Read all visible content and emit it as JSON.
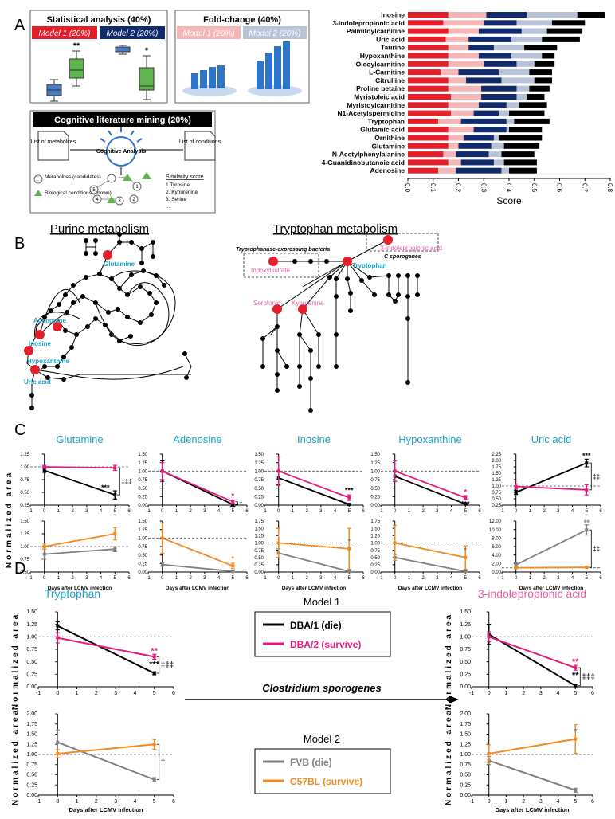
{
  "panel_labels": {
    "a": "A",
    "b": "B",
    "c": "C",
    "d": "D"
  },
  "panel_a": {
    "stat_title": "Statistical analysis (40%)",
    "fold_title": "Fold-change (40%)",
    "model1": "Model 1 (20%)",
    "model2": "Model 2 (20%)",
    "stat_stars": [
      "**",
      "*"
    ],
    "mining_title": "Cognitive literature mining (20%)",
    "doc1": "List of metabolites",
    "doc2": "List of conditions",
    "center": "Cognitive Analysis",
    "legend1": "Metabolites (candidates)",
    "legend2": "Biological conditions (known)",
    "sim_title": "Similarity score",
    "sim_items": [
      "1.Tyrosine",
      "2. Kynurenine",
      "3. Serine",
      "..."
    ],
    "node_numbers": [
      "1",
      "2",
      "3",
      "4",
      "5"
    ]
  },
  "panel_b": {
    "purine_title": "Purine metabolism",
    "tryp_title": "Tryptophan metabolism",
    "purine_nodes": [
      "Glutamine",
      "Adenosine",
      "Inosine",
      "Hypoxanthine",
      "Uric acid"
    ],
    "tryp_nodes": {
      "tryptophan": "Tryptophan",
      "indoxyl": "Indoxylsulfate",
      "serotonin": "Serotonin",
      "kynurenine": "Kynurenine",
      "ipa": "3-indolepropionic acid"
    },
    "bacteria_label": "Tryptophanase-expressing bacteria",
    "csporo_label": "C sporogenes"
  },
  "panel_c": {
    "titles": [
      "Glutamine",
      "Adenosine",
      "Inosine",
      "Hypoxanthine",
      "Uric acid"
    ],
    "ylabel": "Normalized area",
    "xlabel": "Days after LCMV infection"
  },
  "panel_d": {
    "tryp_title": "Tryptophan",
    "ipa_title": "3-indolepropionic acid",
    "model1_title": "Model 1",
    "model2_title": "Model 2",
    "legend_m1": [
      "DBA/1 (die)",
      "DBA/2 (survive)"
    ],
    "legend_m2": [
      "FVB (die)",
      "C57BL (survive)"
    ],
    "arrow_label": "Clostridium sporogenes",
    "ylabel": "Normalized area",
    "xlabel": "Days after LCMV infection"
  },
  "colors": {
    "red": "#e41f2a",
    "pink": "#f4b6b7",
    "navy": "#102a6b",
    "lightblue": "#b8c3d8",
    "black": "#000000",
    "magenta": "#e6197f",
    "gray": "#808080",
    "orange": "#f48a1e",
    "cyan": "#1aa3c8",
    "labelpink": "#e85fa8",
    "green": "#5fb64e",
    "blue": "#4a7bc4"
  },
  "chart_data": [
    {
      "id": "score",
      "type": "bar",
      "orientation": "horizontal",
      "stacked": true,
      "xlabel": "Score",
      "xlim": [
        0,
        0.8
      ],
      "xticks": [
        "0.0",
        "0.1",
        "0.2",
        "0.3",
        "0.4",
        "0.5",
        "0.6",
        "0.7",
        "0.8"
      ],
      "series_names": [
        "Model 1 statistical",
        "Model 1 fold-change",
        "Model 2 statistical",
        "Model 2 fold-change",
        "Literature mining"
      ],
      "categories": [
        "Inosine",
        "3-indolepropionic acid",
        "Palmitoylcarnitine",
        "Uric acid",
        "Taurine",
        "Hypoxanthine",
        "Oleoylcarnitine",
        "L-Carnitine",
        "Citrulline",
        "Proline betaine",
        "Myristoleic acid",
        "Myristoylcarnitine",
        "N1-Acetylspermidine",
        "Tryptophan",
        "Glutamic acid",
        "Ornithine",
        "Glutamine",
        "N-Acetylphenylalanine",
        "4-Guanidinobutanoic acid",
        "Adenosine"
      ],
      "segments": [
        [
          0.16,
          0.15,
          0.16,
          0.2,
          0.11
        ],
        [
          0.14,
          0.16,
          0.13,
          0.14,
          0.13
        ],
        [
          0.16,
          0.12,
          0.17,
          0.1,
          0.14
        ],
        [
          0.15,
          0.09,
          0.17,
          0.12,
          0.15
        ],
        [
          0.16,
          0.08,
          0.1,
          0.12,
          0.13
        ],
        [
          0.16,
          0.12,
          0.13,
          0.12,
          0.05
        ],
        [
          0.16,
          0.14,
          0.13,
          0.07,
          0.08
        ],
        [
          0.13,
          0.07,
          0.16,
          0.12,
          0.09
        ],
        [
          0.16,
          0.07,
          0.14,
          0.13,
          0.07
        ],
        [
          0.16,
          0.13,
          0.14,
          0.05,
          0.08
        ],
        [
          0.17,
          0.12,
          0.14,
          0.04,
          0.07
        ],
        [
          0.16,
          0.12,
          0.11,
          0.05,
          0.11
        ],
        [
          0.17,
          0.09,
          0.1,
          0.04,
          0.14
        ],
        [
          0.12,
          0.09,
          0.18,
          0.03,
          0.14
        ],
        [
          0.16,
          0.1,
          0.13,
          0.01,
          0.13
        ],
        [
          0.16,
          0.06,
          0.12,
          0.02,
          0.17
        ],
        [
          0.16,
          0.04,
          0.13,
          0.05,
          0.14
        ],
        [
          0.14,
          0.05,
          0.13,
          0.05,
          0.13
        ],
        [
          0.16,
          0.05,
          0.13,
          0.04,
          0.13
        ],
        [
          0.12,
          0.07,
          0.18,
          0.03,
          0.11
        ]
      ]
    },
    {
      "id": "c_glu_m1",
      "type": "line",
      "title": "Glutamine",
      "x": [
        0,
        5
      ],
      "xlim": [
        -1,
        6
      ],
      "ylim": [
        0.25,
        1.25
      ],
      "yticks": [
        "0.25",
        "0.50",
        "0.75",
        "1.00",
        "1.25"
      ],
      "xticks": [
        "-1",
        "0",
        "1",
        "2",
        "3",
        "4",
        "5",
        "6"
      ],
      "series": [
        {
          "name": "DBA/1 (die)",
          "values": [
            0.93,
            0.45
          ],
          "err": [
            0.04,
            0.08
          ]
        },
        {
          "name": "DBA/2 (survive)",
          "values": [
            1.0,
            0.98
          ],
          "err": [
            0.03,
            0.05
          ]
        }
      ],
      "annotations": [
        {
          "text": "***",
          "color": "black"
        },
        {
          "text": "‡‡‡",
          "color": "black"
        }
      ]
    },
    {
      "id": "c_ado_m1",
      "type": "line",
      "title": "Adenosine",
      "x": [
        0,
        5
      ],
      "xlim": [
        -1,
        6
      ],
      "ylim": [
        0,
        1.5
      ],
      "yticks": [
        "0.00",
        "0.25",
        "0.50",
        "0.75",
        "1.00",
        "1.25",
        "1.50"
      ],
      "xticks": [
        "-1",
        "0",
        "1",
        "2",
        "3",
        "4",
        "5",
        "6"
      ],
      "series": [
        {
          "name": "DBA/1 (die)",
          "values": [
            1.0,
            0.02
          ],
          "err": [
            0.3,
            0.02
          ]
        },
        {
          "name": "DBA/2 (survive)",
          "values": [
            1.0,
            0.1
          ],
          "err": [
            0.25,
            0.05
          ]
        }
      ],
      "annotations": [
        {
          "text": "*",
          "color": "magenta"
        },
        {
          "text": "**",
          "color": "black"
        },
        {
          "text": "†",
          "color": "black"
        }
      ]
    },
    {
      "id": "c_ino_m1",
      "type": "line",
      "title": "Inosine",
      "x": [
        0,
        5
      ],
      "xlim": [
        -1,
        6
      ],
      "ylim": [
        0,
        1.5
      ],
      "yticks": [
        "0.00",
        "0.25",
        "0.50",
        "0.75",
        "1.00",
        "1.25",
        "1.50"
      ],
      "xticks": [
        "-1",
        "0",
        "1",
        "2",
        "3",
        "4",
        "5",
        "6"
      ],
      "series": [
        {
          "name": "DBA/1 (die)",
          "values": [
            0.8,
            0.02
          ],
          "err": [
            0.2,
            0.02
          ]
        },
        {
          "name": "DBA/2 (survive)",
          "values": [
            1.0,
            0.22
          ],
          "err": [
            0.42,
            0.08
          ]
        }
      ],
      "annotations": [
        {
          "text": "***",
          "color": "black"
        }
      ]
    },
    {
      "id": "c_hyp_m1",
      "type": "line",
      "title": "Hypoxanthine",
      "x": [
        0,
        5
      ],
      "xlim": [
        -1,
        6
      ],
      "ylim": [
        0,
        1.5
      ],
      "yticks": [
        "0.00",
        "0.25",
        "0.50",
        "0.75",
        "1.00",
        "1.25",
        "1.50"
      ],
      "xticks": [
        "-1",
        "0",
        "1",
        "2",
        "3",
        "4",
        "5",
        "6"
      ],
      "series": [
        {
          "name": "DBA/1 (die)",
          "values": [
            0.85,
            0.03
          ],
          "err": [
            0.15,
            0.02
          ]
        },
        {
          "name": "DBA/2 (survive)",
          "values": [
            1.0,
            0.22
          ],
          "err": [
            0.3,
            0.06
          ]
        }
      ],
      "annotations": [
        {
          "text": "*",
          "color": "magenta"
        },
        {
          "text": "***",
          "color": "black"
        }
      ]
    },
    {
      "id": "c_uric_m1",
      "type": "line",
      "title": "Uric acid",
      "x": [
        0,
        5
      ],
      "xlim": [
        -1,
        6
      ],
      "ylim": [
        0.25,
        2.25
      ],
      "yticks": [
        "0.25",
        "0.50",
        "0.75",
        "1.00",
        "1.25",
        "1.50",
        "1.75",
        "2.00",
        "2.25"
      ],
      "xticks": [
        "-1",
        "0",
        "1",
        "2",
        "3",
        "4",
        "5",
        "6"
      ],
      "series": [
        {
          "name": "DBA/1 (die)",
          "values": [
            0.75,
            1.9
          ],
          "err": [
            0.08,
            0.15
          ]
        },
        {
          "name": "DBA/2 (survive)",
          "values": [
            0.98,
            0.85
          ],
          "err": [
            0.1,
            0.2
          ]
        }
      ],
      "annotations": [
        {
          "text": "***",
          "color": "black"
        },
        {
          "text": "‡‡",
          "color": "black"
        }
      ]
    },
    {
      "id": "c_glu_m2",
      "type": "line",
      "x": [
        0,
        5
      ],
      "xlim": [
        -1,
        6
      ],
      "ylim": [
        0.5,
        1.5
      ],
      "yticks": [
        "0.50",
        "0.75",
        "1.00",
        "1.25",
        "1.50"
      ],
      "xticks": [
        "-1",
        "0",
        "1",
        "2",
        "3",
        "4",
        "5",
        "6"
      ],
      "series": [
        {
          "name": "FVB (die)",
          "values": [
            0.85,
            0.95
          ],
          "err": [
            0.1,
            0.05
          ]
        },
        {
          "name": "C57BL (survive)",
          "values": [
            1.0,
            1.25
          ],
          "err": [
            0.05,
            0.12
          ]
        }
      ],
      "annotations": []
    },
    {
      "id": "c_ado_m2",
      "type": "line",
      "x": [
        0,
        5
      ],
      "xlim": [
        -1,
        6
      ],
      "ylim": [
        0,
        1.5
      ],
      "yticks": [
        "0.00",
        "0.25",
        "0.50",
        "0.75",
        "1.00",
        "1.25",
        "1.50"
      ],
      "xticks": [
        "-1",
        "0",
        "1",
        "2",
        "3",
        "4",
        "5",
        "6"
      ],
      "series": [
        {
          "name": "FVB (die)",
          "values": [
            0.22,
            0.02
          ],
          "err": [
            0.05,
            0.02
          ]
        },
        {
          "name": "C57BL (survive)",
          "values": [
            1.0,
            0.18
          ],
          "err": [
            0.45,
            0.08
          ]
        }
      ],
      "annotations": [
        {
          "text": "*",
          "color": "orange"
        }
      ]
    },
    {
      "id": "c_ino_m2",
      "type": "line",
      "x": [
        0,
        5
      ],
      "xlim": [
        -1,
        6
      ],
      "ylim": [
        0,
        1.75
      ],
      "yticks": [
        "0.00",
        "0.25",
        "0.50",
        "0.75",
        "1.00",
        "1.25",
        "1.50",
        "1.75"
      ],
      "xticks": [
        "-1",
        "0",
        "1",
        "2",
        "3",
        "4",
        "5",
        "6"
      ],
      "series": [
        {
          "name": "FVB (die)",
          "values": [
            0.65,
            0.02
          ],
          "err": [
            0.15,
            0.02
          ]
        },
        {
          "name": "C57BL (survive)",
          "values": [
            1.0,
            0.8
          ],
          "err": [
            0.5,
            0.7
          ]
        }
      ],
      "annotations": [
        {
          "text": "*",
          "color": "gray"
        }
      ]
    },
    {
      "id": "c_hyp_m2",
      "type": "line",
      "x": [
        0,
        5
      ],
      "xlim": [
        -1,
        6
      ],
      "ylim": [
        0,
        1.75
      ],
      "yticks": [
        "0.00",
        "0.25",
        "0.50",
        "0.75",
        "1.00",
        "1.25",
        "1.50",
        "1.75"
      ],
      "xticks": [
        "-1",
        "0",
        "1",
        "2",
        "3",
        "4",
        "5",
        "6"
      ],
      "series": [
        {
          "name": "FVB (die)",
          "values": [
            0.5,
            0.02
          ],
          "err": [
            0.1,
            0.02
          ]
        },
        {
          "name": "C57BL (survive)",
          "values": [
            1.0,
            0.5
          ],
          "err": [
            0.6,
            0.4
          ]
        }
      ],
      "annotations": [
        {
          "text": "*",
          "color": "gray"
        }
      ]
    },
    {
      "id": "c_uric_m2",
      "type": "line",
      "x": [
        0,
        5
      ],
      "xlim": [
        -1,
        6
      ],
      "ylim": [
        0,
        12
      ],
      "yticks": [
        "0.00",
        "2.00",
        "4.00",
        "6.00",
        "8.00",
        "10.00",
        "12.00"
      ],
      "xticks": [
        "-1",
        "0",
        "1",
        "2",
        "3",
        "4",
        "5",
        "6"
      ],
      "series": [
        {
          "name": "FVB (die)",
          "values": [
            1.7,
            9.9
          ],
          "err": [
            0.5,
            1.2
          ]
        },
        {
          "name": "C57BL (survive)",
          "values": [
            1.0,
            1.1
          ],
          "err": [
            0.1,
            0.1
          ]
        }
      ],
      "annotations": [
        {
          "text": "**",
          "color": "gray"
        },
        {
          "text": "‡‡",
          "color": "black"
        }
      ]
    },
    {
      "id": "d_tryp_m1",
      "type": "line",
      "x": [
        0,
        5
      ],
      "xlim": [
        -1,
        6
      ],
      "ylim": [
        0,
        1.5
      ],
      "yticks": [
        "0.00",
        "0.25",
        "0.50",
        "0.75",
        "1.00",
        "1.25",
        "1.50"
      ],
      "xticks": [
        "-1",
        "0",
        "1",
        "2",
        "3",
        "4",
        "5",
        "6"
      ],
      "series": [
        {
          "name": "DBA/1 (die)",
          "values": [
            1.22,
            0.27
          ],
          "err": [
            0.08,
            0.03
          ]
        },
        {
          "name": "DBA/2 (survive)",
          "values": [
            0.98,
            0.6
          ],
          "err": [
            0.1,
            0.05
          ]
        }
      ],
      "annotations": [
        {
          "text": "**",
          "color": "magenta"
        },
        {
          "text": "***",
          "color": "black"
        },
        {
          "text": "‡‡‡",
          "color": "black"
        }
      ]
    },
    {
      "id": "d_tryp_m2",
      "type": "line",
      "x": [
        0,
        5
      ],
      "xlim": [
        -1,
        6
      ],
      "ylim": [
        0,
        2
      ],
      "yticks": [
        "0.00",
        "0.25",
        "0.50",
        "0.75",
        "1.00",
        "1.25",
        "1.50",
        "1.75",
        "2.00"
      ],
      "xticks": [
        "-1",
        "0",
        "1",
        "2",
        "3",
        "4",
        "5",
        "6"
      ],
      "series": [
        {
          "name": "FVB (die)",
          "values": [
            1.3,
            0.38
          ],
          "err": [
            0.3,
            0.05
          ]
        },
        {
          "name": "C57BL (survive)",
          "values": [
            1.02,
            1.25
          ],
          "err": [
            0.1,
            0.12
          ]
        }
      ],
      "annotations": [
        {
          "text": "†",
          "color": "black"
        }
      ]
    },
    {
      "id": "d_ipa_m1",
      "type": "line",
      "x": [
        0,
        5
      ],
      "xlim": [
        -1,
        6
      ],
      "ylim": [
        0,
        1.5
      ],
      "yticks": [
        "0.00",
        "0.25",
        "0.50",
        "0.75",
        "1.00",
        "1.25",
        "1.50"
      ],
      "xticks": [
        "-1",
        "0",
        "1",
        "2",
        "3",
        "4",
        "5",
        "6"
      ],
      "series": [
        {
          "name": "DBA/1 (die)",
          "values": [
            1.05,
            0.02
          ],
          "err": [
            0.2,
            0.02
          ]
        },
        {
          "name": "DBA/2 (survive)",
          "values": [
            1.0,
            0.38
          ],
          "err": [
            0.1,
            0.05
          ]
        }
      ],
      "annotations": [
        {
          "text": "**",
          "color": "magenta"
        },
        {
          "text": "**",
          "color": "black"
        },
        {
          "text": "‡‡‡",
          "color": "black"
        }
      ]
    },
    {
      "id": "d_ipa_m2",
      "type": "line",
      "x": [
        0,
        5
      ],
      "xlim": [
        -1,
        6
      ],
      "ylim": [
        0,
        2
      ],
      "yticks": [
        "0.00",
        "0.25",
        "0.50",
        "0.75",
        "1.00",
        "1.25",
        "1.50",
        "1.75",
        "2.00"
      ],
      "xticks": [
        "-1",
        "0",
        "1",
        "2",
        "3",
        "4",
        "5",
        "6"
      ],
      "series": [
        {
          "name": "FVB (die)",
          "values": [
            0.85,
            0.12
          ],
          "err": [
            0.1,
            0.05
          ]
        },
        {
          "name": "C57BL (survive)",
          "values": [
            1.02,
            1.38
          ],
          "err": [
            0.22,
            0.35
          ]
        }
      ],
      "annotations": [
        {
          "text": "*",
          "color": "gray"
        }
      ]
    }
  ]
}
